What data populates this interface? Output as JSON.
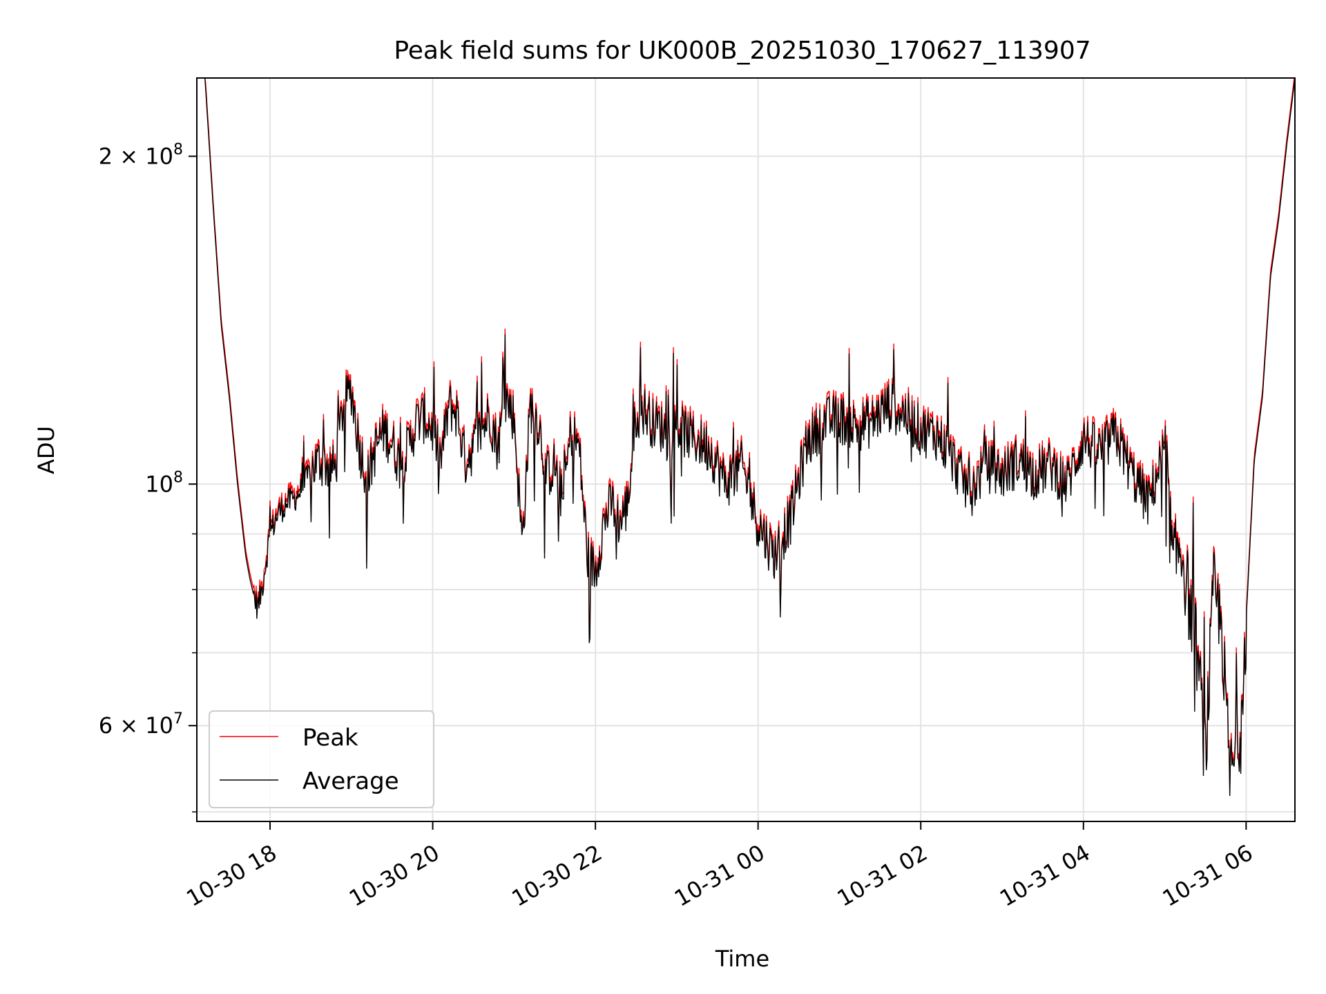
{
  "chart_data": {
    "type": "line",
    "title": "Peak field sums for UK000B_20251030_170627_113907",
    "xlabel": "Time",
    "ylabel": "ADU",
    "yscale": "log",
    "grid": true,
    "legend_position": "lower-left",
    "xlim": [
      17.1,
      30.6
    ],
    "ylim": [
      49000000,
      236000000
    ],
    "x_ticks": [
      {
        "value": 18,
        "label": "10-30 18"
      },
      {
        "value": 20,
        "label": "10-30 20"
      },
      {
        "value": 22,
        "label": "10-30 22"
      },
      {
        "value": 24,
        "label": "10-31 00"
      },
      {
        "value": 26,
        "label": "10-31 02"
      },
      {
        "value": 28,
        "label": "10-31 04"
      },
      {
        "value": 30,
        "label": "10-31 06"
      }
    ],
    "y_major_ticks": [
      {
        "value": 60000000,
        "mant": "6",
        "exp": "7"
      },
      {
        "value": 100000000,
        "mant": "",
        "exp": "8"
      },
      {
        "value": 200000000,
        "mant": "2",
        "exp": "8"
      }
    ],
    "y_minor_ticks": [
      50000000,
      70000000,
      80000000,
      90000000
    ],
    "x_unit": "hours since 2025-10-30 00:00",
    "series": [
      {
        "name": "Peak",
        "color": "#ff0000"
      },
      {
        "name": "Average",
        "color": "#000000"
      }
    ],
    "x": [
      17.1,
      17.2,
      17.3,
      17.4,
      17.5,
      17.6,
      17.7,
      17.75,
      17.8,
      17.85,
      17.9,
      17.95,
      18.0,
      18.05,
      18.1,
      18.15,
      18.2,
      18.3,
      18.4,
      18.5,
      18.6,
      18.7,
      18.8,
      18.9,
      19.0,
      19.1,
      19.2,
      19.3,
      19.4,
      19.5,
      19.6,
      19.7,
      19.8,
      19.9,
      20.0,
      20.1,
      20.2,
      20.3,
      20.4,
      20.5,
      20.6,
      20.7,
      20.8,
      20.9,
      21.0,
      21.1,
      21.2,
      21.3,
      21.4,
      21.5,
      21.6,
      21.7,
      21.8,
      21.9,
      22.0,
      22.1,
      22.2,
      22.3,
      22.4,
      22.5,
      22.6,
      22.7,
      22.8,
      22.9,
      23.0,
      23.2,
      23.4,
      23.6,
      23.8,
      24.0,
      24.2,
      24.4,
      24.6,
      24.8,
      25.0,
      25.2,
      25.4,
      25.6,
      25.8,
      26.0,
      26.2,
      26.4,
      26.6,
      26.8,
      27.0,
      27.2,
      27.4,
      27.6,
      27.8,
      28.0,
      28.2,
      28.4,
      28.6,
      28.8,
      29.0,
      29.1,
      29.2,
      29.3,
      29.4,
      29.5,
      29.6,
      29.7,
      29.8,
      29.9,
      30.0,
      30.1,
      30.2,
      30.3,
      30.4,
      30.5,
      30.6
    ],
    "average_values": [
      236000000,
      236000000,
      180000000,
      140000000,
      120000000,
      100000000,
      86000000,
      82000000,
      79000000,
      77000000,
      80000000,
      85000000,
      90000000,
      92000000,
      94000000,
      95000000,
      96000000,
      97000000,
      99000000,
      103000000,
      105000000,
      104000000,
      103000000,
      118000000,
      122000000,
      108000000,
      101000000,
      108000000,
      112000000,
      109000000,
      104000000,
      108000000,
      114000000,
      115000000,
      112000000,
      105000000,
      118000000,
      116000000,
      105000000,
      108000000,
      112000000,
      116000000,
      108000000,
      120000000,
      115000000,
      88000000,
      118000000,
      114000000,
      102000000,
      104000000,
      96000000,
      112000000,
      108000000,
      86000000,
      83000000,
      92000000,
      96000000,
      92000000,
      96000000,
      116000000,
      117000000,
      114000000,
      113000000,
      110000000,
      113000000,
      110000000,
      108000000,
      100000000,
      104000000,
      92000000,
      86000000,
      93000000,
      109000000,
      114000000,
      115000000,
      113000000,
      114000000,
      118000000,
      116000000,
      112000000,
      111000000,
      105000000,
      98000000,
      104000000,
      102000000,
      105000000,
      102000000,
      104000000,
      100000000,
      110000000,
      107000000,
      111000000,
      102000000,
      96000000,
      108000000,
      84000000,
      88000000,
      78000000,
      70000000,
      56000000,
      80000000,
      74000000,
      54000000,
      57000000,
      75000000,
      105000000,
      120000000,
      155000000,
      175000000,
      205000000,
      236000000
    ],
    "peak_ratio": 1.012
  }
}
